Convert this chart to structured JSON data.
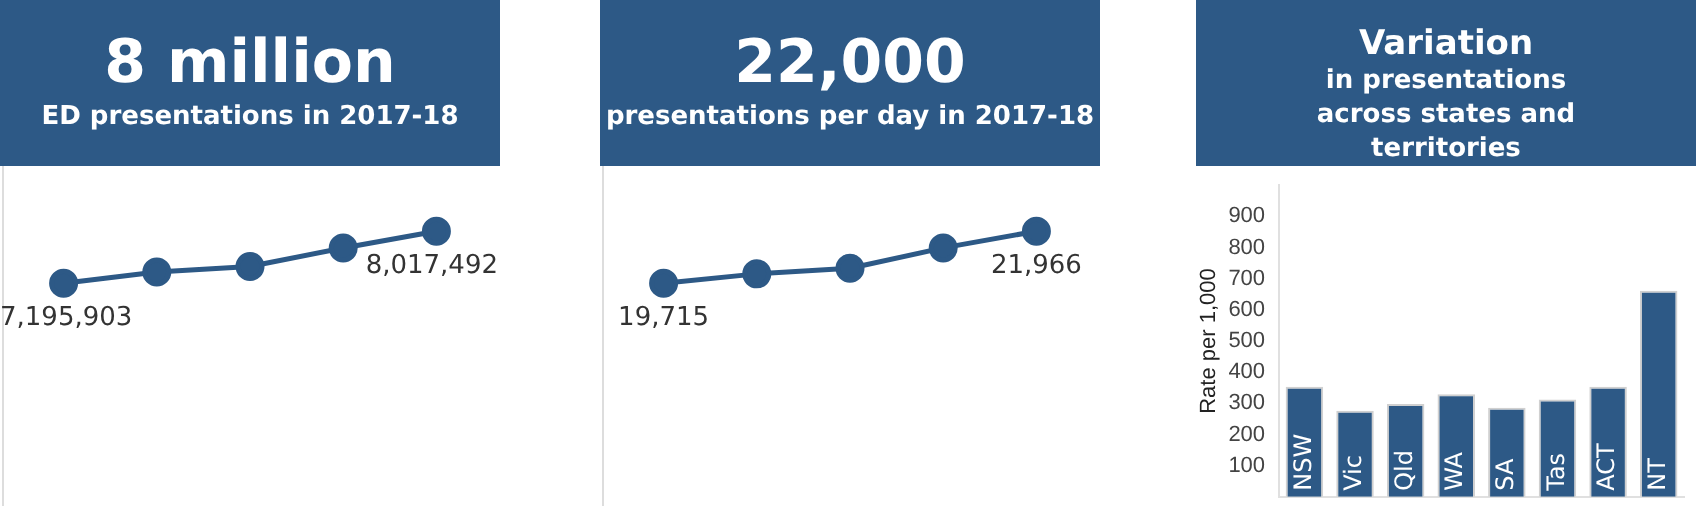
{
  "chart_data": [
    {
      "type": "line",
      "title": "8 million",
      "subtitle": "ED presentations in 2017-18",
      "categories": [
        null,
        null,
        null,
        null,
        null
      ],
      "series": [
        {
          "color": "#2d5986",
          "values": [
            7195903,
            7372000,
            7460000,
            7753000,
            8017492
          ],
          "value_labels": [
            "7,195,903",
            null,
            null,
            null,
            "8,017,492"
          ]
        }
      ],
      "marker": "circle",
      "grid": false,
      "tick_labels": false
    },
    {
      "type": "line",
      "title": "22,000",
      "subtitle": "presentations per day in 2017-18",
      "categories": [
        null,
        null,
        null,
        null,
        null
      ],
      "series": [
        {
          "color": "#2d5986",
          "values": [
            19715,
            20117,
            20358,
            21243,
            21966
          ],
          "value_labels": [
            "19,715",
            null,
            null,
            null,
            "21,966"
          ]
        }
      ],
      "marker": "circle",
      "grid": false,
      "tick_labels": false
    },
    {
      "type": "bar",
      "title": "Variation",
      "subtitle": "in presentations across states and territories",
      "ylabel": "Rate per 1,000",
      "categories": [
        "NSW",
        "Vic",
        "Qld",
        "WA",
        "SA",
        "Tas",
        "ACT",
        "NT"
      ],
      "values": [
        353,
        276,
        298,
        329,
        286,
        312,
        353,
        661
      ],
      "color": "#2d5986",
      "ylim": [
        0,
        1000
      ],
      "yticks": [
        100,
        200,
        300,
        400,
        500,
        600,
        700,
        800,
        900
      ],
      "grid": false
    }
  ]
}
